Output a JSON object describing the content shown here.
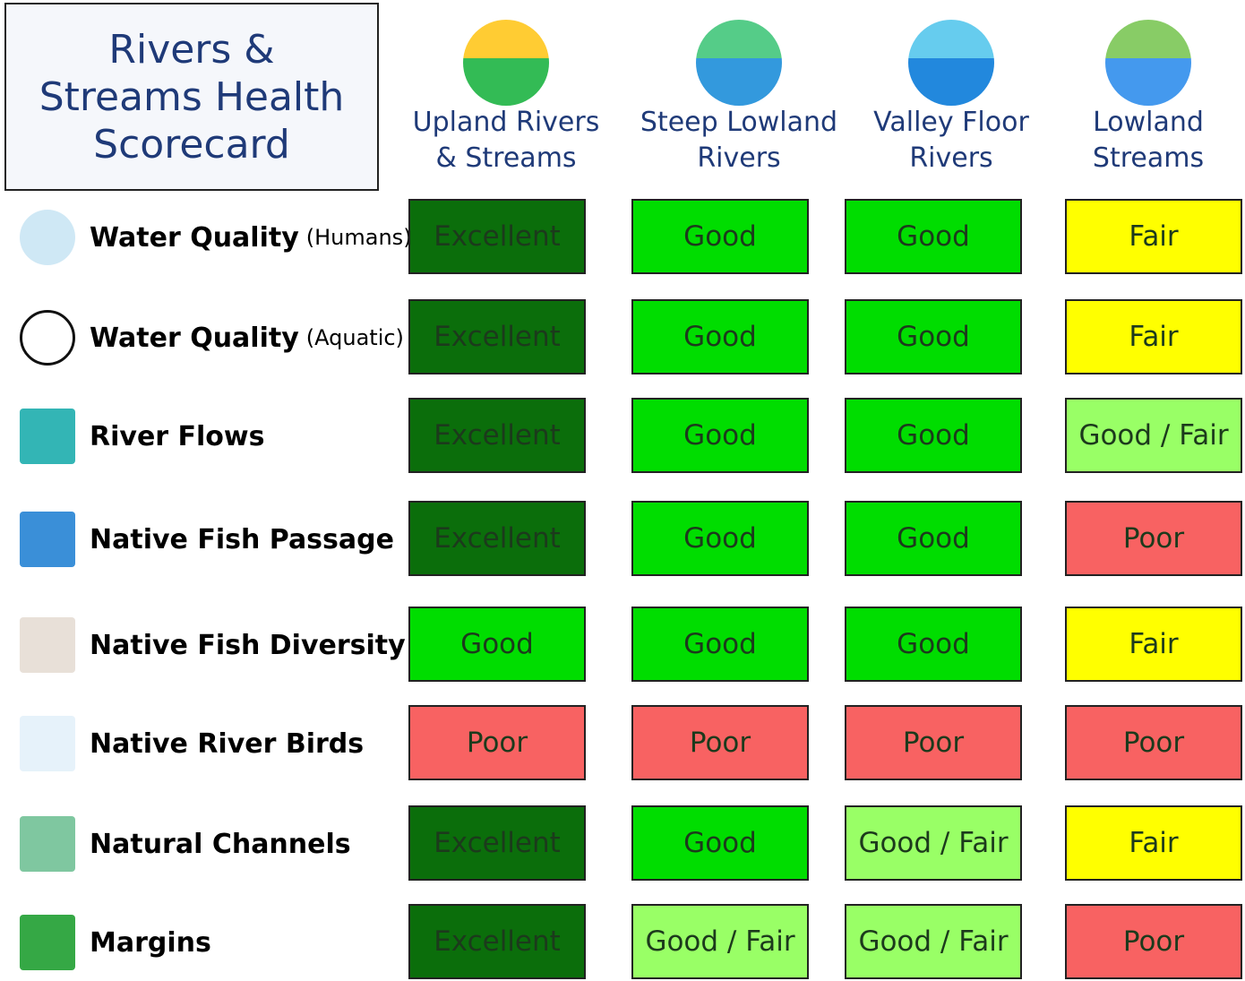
{
  "header": {
    "title": "Rivers &\nStreams Health\nScorecard"
  },
  "columns": [
    "Upland Rivers\n& Streams",
    "Steep Lowland\nRivers",
    "Valley Floor\nRivers",
    "Lowland\nStreams"
  ],
  "rows": [
    {
      "label": "Water Quality",
      "qualifier": "(Humans)",
      "cells": [
        {
          "text": "Excellent",
          "color": "#0b6e0b"
        },
        {
          "text": "Good",
          "color": "#00dd00"
        },
        {
          "text": "Good",
          "color": "#00dd00"
        },
        {
          "text": "Fair",
          "color": "#ffff00"
        }
      ]
    },
    {
      "label": "Water Quality",
      "qualifier": "(Aquatic)",
      "cells": [
        {
          "text": "Excellent",
          "color": "#0b6e0b"
        },
        {
          "text": "Good",
          "color": "#00dd00"
        },
        {
          "text": "Good",
          "color": "#00dd00"
        },
        {
          "text": "Fair",
          "color": "#ffff00"
        }
      ]
    },
    {
      "label": "River Flows",
      "cells": [
        {
          "text": "Excellent",
          "color": "#0b6e0b"
        },
        {
          "text": "Good",
          "color": "#00dd00"
        },
        {
          "text": "Good",
          "color": "#00dd00"
        },
        {
          "text": "Good / Fair",
          "color": "#99ff66"
        }
      ]
    },
    {
      "label": "Native Fish Passage",
      "cells": [
        {
          "text": "Excellent",
          "color": "#0b6e0b"
        },
        {
          "text": "Good",
          "color": "#00dd00"
        },
        {
          "text": "Good",
          "color": "#00dd00"
        },
        {
          "text": "Poor",
          "color": "#f86262"
        }
      ]
    },
    {
      "label": "Native Fish Diversity",
      "cells": [
        {
          "text": "Good",
          "color": "#00dd00"
        },
        {
          "text": "Good",
          "color": "#00dd00"
        },
        {
          "text": "Good",
          "color": "#00dd00"
        },
        {
          "text": "Fair",
          "color": "#ffff00"
        }
      ]
    },
    {
      "label": "Native River Birds",
      "cells": [
        {
          "text": "Poor",
          "color": "#f86262"
        },
        {
          "text": "Poor",
          "color": "#f86262"
        },
        {
          "text": "Poor",
          "color": "#f86262"
        },
        {
          "text": "Poor",
          "color": "#f86262"
        }
      ]
    },
    {
      "label": "Natural Channels",
      "cells": [
        {
          "text": "Excellent",
          "color": "#0b6e0b"
        },
        {
          "text": "Good",
          "color": "#00dd00"
        },
        {
          "text": "Good / Fair",
          "color": "#99ff66"
        },
        {
          "text": "Fair",
          "color": "#ffff00"
        }
      ]
    },
    {
      "label": "Margins",
      "cells": [
        {
          "text": "Excellent",
          "color": "#0b6e0b"
        },
        {
          "text": "Good / Fair",
          "color": "#99ff66"
        },
        {
          "text": "Good / Fair",
          "color": "#99ff66"
        },
        {
          "text": "Poor",
          "color": "#f86262"
        }
      ]
    }
  ]
}
